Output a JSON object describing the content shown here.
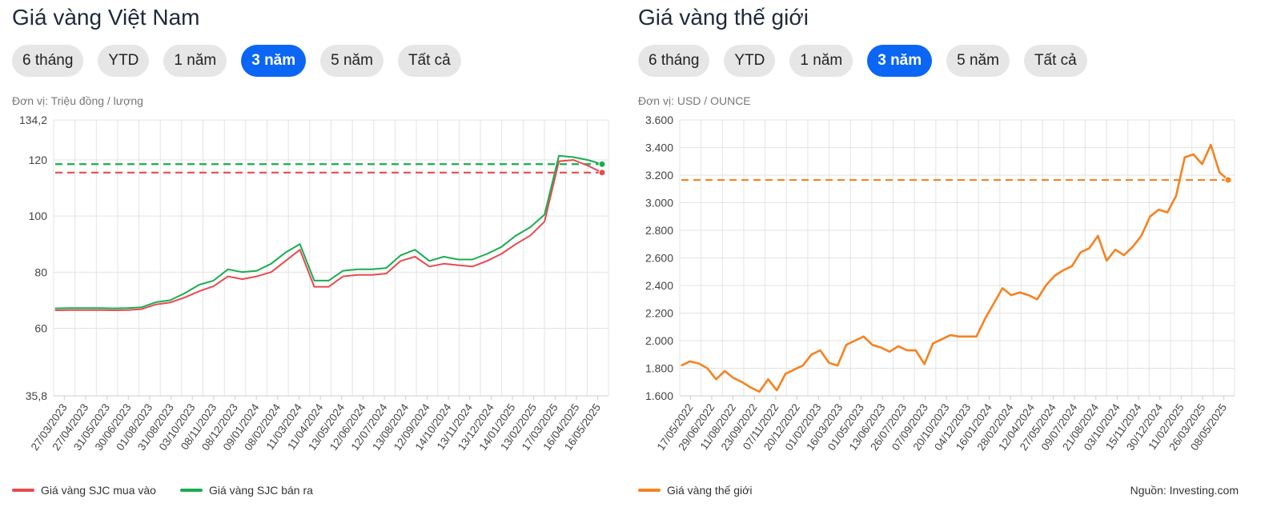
{
  "vn": {
    "title": "Giá vàng Việt Nam",
    "unit": "Đơn vị: Triệu đồng / lượng",
    "buttons": [
      "6 tháng",
      "YTD",
      "1 năm",
      "3 năm",
      "5 năm",
      "Tất cả"
    ],
    "active": "3 năm",
    "legend": [
      {
        "label": "Giá vàng SJC mua vào",
        "color": "#e84a4f"
      },
      {
        "label": "Giá vàng SJC bán ra",
        "color": "#1aad4f"
      }
    ]
  },
  "world": {
    "title": "Giá vàng thế giới",
    "unit": "Đơn vị: USD / OUNCE",
    "buttons": [
      "6 tháng",
      "YTD",
      "1 năm",
      "3 năm",
      "5 năm",
      "Tất cả"
    ],
    "active": "3 năm",
    "legend": [
      {
        "label": "Giá vàng thế giới",
        "color": "#f68220"
      }
    ],
    "source": "Nguồn: Investing.com"
  },
  "chart_data": [
    {
      "type": "line",
      "x_ticks": [
        "27/03/2023",
        "27/04/2023",
        "31/05/2023",
        "30/06/2023",
        "01/08/2023",
        "31/08/2023",
        "03/10/2023",
        "08/11/2023",
        "08/12/2023",
        "09/01/2024",
        "08/02/2024",
        "11/03/2024",
        "11/04/2024",
        "13/05/2024",
        "12/06/2024",
        "12/07/2024",
        "13/08/2024",
        "12/09/2024",
        "14/10/2024",
        "13/11/2024",
        "13/12/2024",
        "14/01/2025",
        "13/02/2025",
        "17/03/2025",
        "16/04/2025",
        "16/05/2025"
      ],
      "y_ticks": [
        {
          "value": 35.8,
          "label": "35,8"
        },
        {
          "value": 60,
          "label": "60"
        },
        {
          "value": 80,
          "label": "80"
        },
        {
          "value": 100,
          "label": "100"
        },
        {
          "value": 120,
          "label": "120"
        },
        {
          "value": 134.2,
          "label": "134,2"
        }
      ],
      "y_axis": "break",
      "reference_lines": [
        {
          "series": "Giá vàng SJC bán ra",
          "value": 118.5
        },
        {
          "series": "Giá vàng SJC mua vào",
          "value": 115.5
        }
      ],
      "series": [
        {
          "name": "Giá vàng SJC mua vào",
          "color": "#e84a4f",
          "values": [
            66.4,
            66.5,
            66.5,
            66.5,
            66.4,
            66.5,
            66.8,
            68.5,
            69.2,
            71.0,
            73.2,
            75.0,
            78.5,
            77.5,
            78.5,
            80.0,
            84.0,
            88.0,
            74.8,
            74.8,
            78.5,
            79.0,
            79.0,
            79.5,
            84.0,
            85.5,
            82.0,
            83.0,
            82.5,
            82.0,
            84.0,
            86.5,
            90.0,
            93.0,
            98.0,
            119.5,
            120.0,
            118.0,
            115.5
          ]
        },
        {
          "name": "Giá vàng SJC bán ra",
          "color": "#1aad4f",
          "values": [
            67.1,
            67.2,
            67.2,
            67.2,
            67.1,
            67.2,
            67.5,
            69.3,
            70.0,
            72.5,
            75.5,
            77.0,
            81.0,
            80.0,
            80.5,
            83.0,
            87.0,
            90.0,
            77.0,
            77.0,
            80.5,
            81.0,
            81.0,
            81.5,
            86.0,
            88.0,
            84.0,
            85.5,
            84.5,
            84.5,
            86.5,
            89.0,
            93.0,
            96.0,
            100.5,
            121.5,
            121.0,
            120.0,
            118.5
          ]
        }
      ]
    },
    {
      "type": "line",
      "x_ticks": [
        "17/05/2022",
        "29/06/2022",
        "11/08/2022",
        "23/09/2022",
        "07/11/2022",
        "20/12/2022",
        "01/02/2023",
        "16/03/2023",
        "01/05/2023",
        "13/06/2023",
        "26/07/2023",
        "07/09/2023",
        "20/10/2023",
        "04/12/2023",
        "16/01/2024",
        "28/02/2024",
        "12/04/2024",
        "27/05/2024",
        "09/07/2024",
        "21/08/2024",
        "03/10/2024",
        "15/11/2024",
        "30/12/2024",
        "11/02/2025",
        "26/03/2025",
        "08/05/2025"
      ],
      "y_ticks": [
        {
          "value": 1600,
          "label": "1.600"
        },
        {
          "value": 1800,
          "label": "1.800"
        },
        {
          "value": 2000,
          "label": "2.000"
        },
        {
          "value": 2200,
          "label": "2.200"
        },
        {
          "value": 2400,
          "label": "2.400"
        },
        {
          "value": 2600,
          "label": "2.600"
        },
        {
          "value": 2800,
          "label": "2.800"
        },
        {
          "value": 3000,
          "label": "3.000"
        },
        {
          "value": 3200,
          "label": "3.200"
        },
        {
          "value": 3400,
          "label": "3.400"
        },
        {
          "value": 3600,
          "label": "3.600"
        }
      ],
      "ylim": [
        1600,
        3600
      ],
      "reference_lines": [
        {
          "series": "Giá vàng thế giới",
          "value": 3165
        }
      ],
      "series": [
        {
          "name": "Giá vàng thế giới",
          "color": "#f68220",
          "values": [
            1820,
            1850,
            1835,
            1800,
            1720,
            1780,
            1730,
            1700,
            1660,
            1630,
            1720,
            1640,
            1760,
            1790,
            1820,
            1900,
            1930,
            1840,
            1820,
            1970,
            2000,
            2030,
            1970,
            1950,
            1920,
            1960,
            1930,
            1930,
            1830,
            1980,
            2010,
            2040,
            2030,
            2030,
            2030,
            2160,
            2270,
            2380,
            2330,
            2350,
            2330,
            2300,
            2400,
            2470,
            2510,
            2540,
            2640,
            2670,
            2760,
            2580,
            2660,
            2620,
            2680,
            2760,
            2900,
            2950,
            2930,
            3050,
            3330,
            3350,
            3280,
            3420,
            3220,
            3165
          ]
        }
      ]
    }
  ]
}
